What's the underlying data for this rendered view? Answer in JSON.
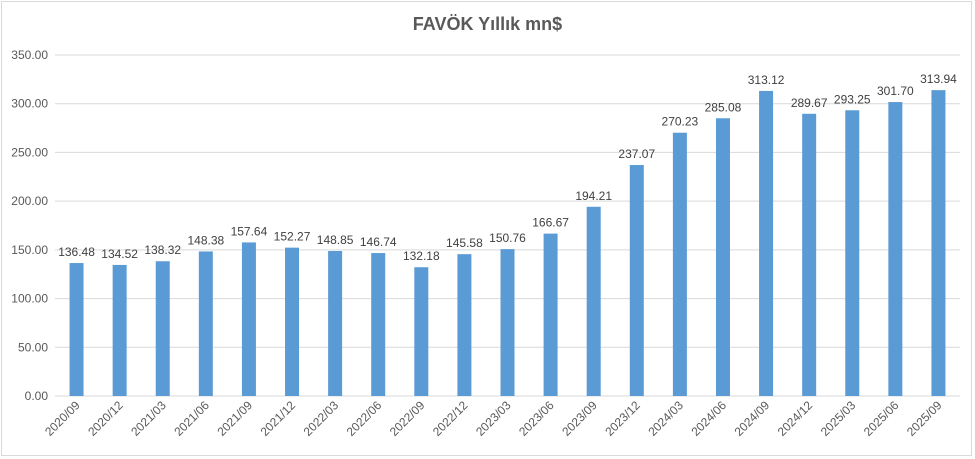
{
  "chart_data": {
    "type": "bar",
    "title": "FAVÖK Yıllık mn$",
    "xlabel": "",
    "ylabel": "",
    "ylim": [
      0,
      350
    ],
    "y_ticks": [
      "0.00",
      "50.00",
      "100.00",
      "150.00",
      "200.00",
      "250.00",
      "300.00",
      "350.00"
    ],
    "grid": true,
    "bar_color": "#5B9BD5",
    "grid_color": "#d9d9d9",
    "categories": [
      "2020/09",
      "2020/12",
      "2021/03",
      "2021/06",
      "2021/09",
      "2021/12",
      "2022/03",
      "2022/06",
      "2022/09",
      "2022/12",
      "2023/03",
      "2023/06",
      "2023/09",
      "2023/12",
      "2024/03",
      "2024/06",
      "2024/09",
      "2024/12",
      "2025/03",
      "2025/06",
      "2025/09"
    ],
    "values": [
      136.48,
      134.52,
      138.32,
      148.38,
      157.64,
      152.27,
      148.85,
      146.74,
      132.18,
      145.58,
      150.76,
      166.67,
      194.21,
      237.07,
      270.23,
      285.08,
      313.12,
      289.67,
      293.25,
      301.7,
      313.94
    ],
    "value_labels": [
      "136.48",
      "134.52",
      "138.32",
      "148.38",
      "157.64",
      "152.27",
      "148.85",
      "146.74",
      "132.18",
      "145.58",
      "150.76",
      "166.67",
      "194.21",
      "237.07",
      "270.23",
      "285.08",
      "313.12",
      "289.67",
      "293.25",
      "301.70",
      "313.94"
    ]
  }
}
